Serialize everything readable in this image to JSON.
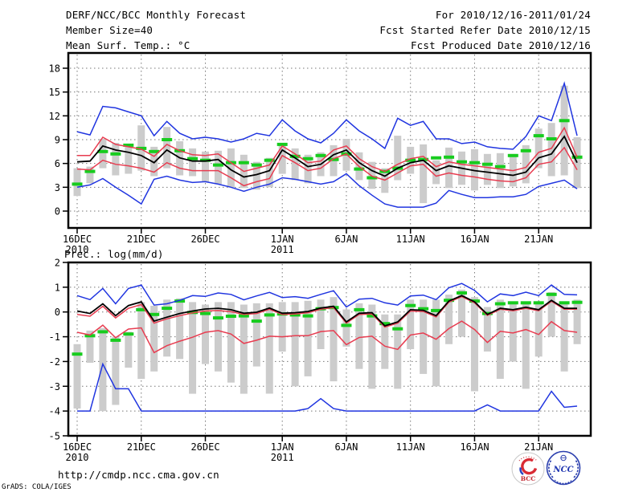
{
  "header": {
    "title": "DERF/NCC/BCC Monthly Forecast",
    "member_size": "Member Size=40",
    "for_range": "For 2010/12/16-2011/01/24",
    "refer_date": "Fcst Started Refer Date 2010/12/15",
    "produced_date": "Fcst Produced Date 2010/12/16"
  },
  "footer": {
    "url": "http://cmdp.ncc.cma.gov.cn",
    "credit": "GrADS: COLA/IGES"
  },
  "logos": {
    "bcc_label": "BCC",
    "ncc_label": "NCC"
  },
  "colors": {
    "black": "#000000",
    "blue": "#2035e0",
    "red": "#e83c50",
    "green": "#17cc1e",
    "bar": "#cccccc",
    "grid": "#777777",
    "frame": "#000000"
  },
  "chart_data": [
    {
      "type": "line",
      "title": "Mean Surf. Temp.: °C",
      "panel_label": "Mean Surf. Temp.: °C",
      "xlabel": "",
      "ylabel": "°C",
      "x_range_label": "daily, 2010/12/16 to 2011/01/24",
      "n_points": 40,
      "ylim": [
        -2.1,
        19.9
      ],
      "y_ticks": [
        0,
        3,
        6,
        9,
        12,
        15,
        18
      ],
      "grid_y": [
        0,
        3,
        6,
        9,
        12,
        15,
        18
      ],
      "grid": "dotted",
      "x_ticks": [
        {
          "label": "16DEC",
          "day": 1,
          "year": "2010"
        },
        {
          "label": "21DEC",
          "day": 6
        },
        {
          "label": "26DEC",
          "day": 11
        },
        {
          "label": "1JAN",
          "day": 17,
          "year": "2011"
        },
        {
          "label": "6JAN",
          "day": 22
        },
        {
          "label": "11JAN",
          "day": 27
        },
        {
          "label": "16JAN",
          "day": 32
        },
        {
          "label": "21JAN",
          "day": 37
        }
      ],
      "bars": {
        "name": "ensemble-spread-bar",
        "color": "bar",
        "low": [
          1.9,
          3.5,
          5.4,
          4.5,
          4.7,
          5.1,
          4.4,
          5.4,
          4.5,
          4.4,
          3.7,
          3.4,
          3.0,
          2.9,
          2.7,
          3.0,
          4.7,
          3.9,
          3.5,
          4.4,
          4.4,
          5.1,
          3.9,
          2.8,
          2.3,
          3.9,
          4.7,
          1.0,
          3.4,
          2.9,
          3.3,
          2.6,
          3.3,
          2.9,
          3.1,
          3.5,
          5.4,
          4.4,
          4.5,
          2.9
        ],
        "high": [
          5.4,
          5.6,
          9.1,
          8.6,
          8.4,
          10.8,
          8.1,
          10.6,
          8.8,
          7.9,
          7.5,
          7.6,
          7.9,
          7.1,
          6.2,
          6.7,
          8.6,
          7.9,
          7.1,
          7.4,
          8.3,
          9.1,
          7.4,
          6.2,
          5.4,
          9.5,
          8.1,
          8.4,
          6.4,
          8.0,
          7.5,
          7.8,
          7.2,
          7.3,
          7.2,
          8.3,
          10.4,
          11.1,
          15.8,
          9.3
        ]
      },
      "series": [
        {
          "name": "obs-dash",
          "color": "green",
          "style": "dash",
          "values": [
            3.4,
            5.0,
            7.5,
            7.2,
            8.3,
            7.9,
            7.5,
            9.0,
            7.6,
            6.6,
            6.4,
            5.8,
            6.1,
            6.1,
            5.8,
            6.4,
            8.4,
            6.9,
            6.6,
            7.0,
            6.5,
            7.2,
            5.3,
            4.2,
            5.0,
            5.4,
            6.4,
            6.5,
            6.7,
            6.8,
            6.2,
            6.1,
            5.9,
            5.6,
            7.0,
            7.6,
            9.5,
            9.1,
            11.4,
            6.8
          ]
        },
        {
          "name": "ensemble-min-line",
          "color": "blue",
          "width": 1.5,
          "values": [
            3.0,
            3.3,
            4.1,
            3.0,
            2.0,
            0.9,
            4.0,
            4.4,
            3.9,
            3.6,
            3.7,
            3.4,
            3.0,
            2.5,
            3.0,
            3.4,
            4.2,
            4.0,
            3.7,
            3.4,
            3.7,
            4.7,
            3.2,
            2.0,
            0.9,
            0.5,
            0.5,
            0.5,
            1.0,
            2.6,
            2.1,
            1.7,
            1.7,
            1.8,
            1.8,
            2.1,
            3.1,
            3.5,
            3.9,
            2.8
          ]
        },
        {
          "name": "ensemble-max-line",
          "color": "blue",
          "width": 1.5,
          "values": [
            10.0,
            9.6,
            13.2,
            13.0,
            12.5,
            12.0,
            9.5,
            11.3,
            9.8,
            9.1,
            9.3,
            9.1,
            8.7,
            9.1,
            9.8,
            9.5,
            11.5,
            10.1,
            9.1,
            8.6,
            9.8,
            11.5,
            10.1,
            9.1,
            7.9,
            11.7,
            10.8,
            11.3,
            9.1,
            9.1,
            8.5,
            8.7,
            8.1,
            7.9,
            7.8,
            9.4,
            12.0,
            11.4,
            16.1,
            9.5
          ]
        },
        {
          "name": "spread-lower-line",
          "color": "red",
          "width": 1.5,
          "values": [
            5.3,
            5.2,
            6.4,
            5.9,
            5.7,
            5.4,
            4.9,
            6.1,
            5.4,
            5.1,
            5.1,
            5.1,
            4.2,
            3.2,
            3.7,
            4.1,
            7.0,
            6.1,
            5.1,
            5.4,
            6.6,
            7.2,
            5.6,
            4.4,
            3.9,
            4.8,
            5.7,
            5.9,
            4.4,
            4.8,
            4.5,
            4.3,
            4.0,
            3.8,
            3.7,
            4.2,
            5.9,
            6.2,
            8.0,
            5.2
          ]
        },
        {
          "name": "spread-upper-line",
          "color": "red",
          "width": 1.5,
          "values": [
            7.0,
            7.0,
            9.3,
            8.4,
            8.1,
            7.8,
            6.9,
            8.4,
            7.6,
            7.1,
            7.0,
            7.2,
            6.1,
            5.0,
            5.4,
            5.8,
            8.2,
            7.2,
            6.1,
            6.3,
            7.7,
            8.2,
            6.6,
            5.6,
            5.0,
            5.9,
            6.6,
            6.9,
            5.6,
            6.2,
            5.9,
            5.7,
            5.5,
            5.3,
            5.1,
            5.5,
            7.4,
            7.9,
            10.5,
            6.8
          ]
        },
        {
          "name": "ensemble-mean-line",
          "color": "black",
          "width": 1.8,
          "values": [
            6.2,
            6.3,
            8.2,
            7.7,
            7.4,
            7.0,
            6.1,
            7.7,
            6.7,
            6.3,
            6.3,
            6.5,
            5.2,
            4.3,
            4.6,
            5.1,
            7.7,
            6.7,
            5.6,
            5.9,
            7.1,
            7.7,
            6.1,
            5.1,
            4.4,
            5.4,
            6.1,
            6.4,
            5.1,
            5.7,
            5.4,
            5.1,
            4.9,
            4.7,
            4.5,
            4.9,
            6.7,
            7.2,
            9.4,
            6.1
          ]
        }
      ]
    },
    {
      "type": "line",
      "title": "Prec.: log(mm/d)",
      "panel_label": "Prec.: log(mm/d)",
      "xlabel": "",
      "ylabel": "log(mm/d)",
      "x_range_label": "daily, 2010/12/16 to 2011/01/24",
      "n_points": 40,
      "ylim": [
        -5,
        2
      ],
      "y_ticks": [
        2,
        1,
        0,
        -1,
        -2,
        -3,
        -4,
        -5
      ],
      "grid_y": [
        1,
        0,
        -1,
        -2,
        -3,
        -4
      ],
      "grid": "dotted",
      "x_ticks": [
        {
          "label": "16DEC",
          "day": 1,
          "year": "2010"
        },
        {
          "label": "21DEC",
          "day": 6
        },
        {
          "label": "26DEC",
          "day": 11
        },
        {
          "label": "1JAN",
          "day": 17,
          "year": "2011"
        },
        {
          "label": "6JAN",
          "day": 22
        },
        {
          "label": "11JAN",
          "day": 27
        },
        {
          "label": "16JAN",
          "day": 32
        },
        {
          "label": "21JAN",
          "day": 37
        }
      ],
      "bars": {
        "name": "ensemble-spread-bar",
        "color": "bar",
        "low": [
          -3.9,
          -2.05,
          -4.0,
          -3.75,
          -2.25,
          -2.7,
          -2.4,
          -1.8,
          -1.9,
          -3.3,
          -2.1,
          -2.4,
          -2.85,
          -3.3,
          -2.2,
          -3.3,
          -1.6,
          -3.0,
          -2.6,
          -1.5,
          -2.8,
          -1.4,
          -2.3,
          -3.1,
          -2.3,
          -3.1,
          -1.5,
          -2.5,
          -3.0,
          -1.3,
          -1.0,
          -3.2,
          -1.6,
          -2.7,
          -2.0,
          -3.1,
          -1.8,
          -1.0,
          -2.4,
          -1.3
        ],
        "high": [
          -1.3,
          -0.75,
          -0.65,
          -1.0,
          -0.8,
          0.4,
          0.25,
          0.5,
          0.55,
          0.4,
          0.3,
          0.4,
          0.4,
          0.3,
          0.35,
          0.35,
          0.4,
          0.4,
          0.45,
          0.5,
          0.6,
          0.1,
          0.35,
          0.3,
          -0.1,
          -0.1,
          0.5,
          0.5,
          0.5,
          0.7,
          0.9,
          0.6,
          0.2,
          0.5,
          0.4,
          0.4,
          0.4,
          0.8,
          0.4,
          0.5
        ]
      },
      "series": [
        {
          "name": "obs-dash",
          "color": "green",
          "style": "dash",
          "values": [
            -1.7,
            -0.96,
            -0.8,
            -1.14,
            -0.89,
            0.09,
            -0.1,
            0.15,
            0.44,
            -0.02,
            -0.06,
            -0.24,
            -0.17,
            -0.16,
            -0.37,
            -0.12,
            -0.08,
            -0.12,
            -0.16,
            0.13,
            0.18,
            -0.54,
            0.09,
            -0.16,
            -0.47,
            -0.68,
            0.26,
            0.13,
            0.06,
            0.47,
            0.77,
            0.44,
            -0.06,
            0.33,
            0.37,
            0.37,
            0.37,
            0.71,
            0.37,
            0.39
          ]
        },
        {
          "name": "ensemble-min-line",
          "color": "blue",
          "width": 1.5,
          "values": [
            -4,
            -4,
            -2.1,
            -3.1,
            -3.1,
            -4,
            -4,
            -4,
            -4,
            -4,
            -4,
            -4,
            -4,
            -4,
            -4,
            -4,
            -4,
            -4,
            -3.9,
            -3.5,
            -3.9,
            -4,
            -4,
            -4,
            -4,
            -4,
            -4,
            -4,
            -4,
            -4,
            -4,
            -4,
            -3.75,
            -4,
            -4,
            -4,
            -4,
            -3.2,
            -3.85,
            -3.8
          ]
        },
        {
          "name": "ensemble-max-line",
          "color": "blue",
          "width": 1.5,
          "values": [
            0.66,
            0.5,
            0.95,
            0.33,
            0.95,
            1.09,
            0.28,
            0.33,
            0.47,
            0.66,
            0.63,
            0.77,
            0.71,
            0.49,
            0.65,
            0.79,
            0.58,
            0.62,
            0.55,
            0.71,
            0.86,
            0.2,
            0.52,
            0.55,
            0.37,
            0.28,
            0.65,
            0.68,
            0.5,
            0.98,
            1.15,
            0.87,
            0.41,
            0.73,
            0.66,
            0.8,
            0.66,
            1.09,
            0.71,
            0.69
          ]
        },
        {
          "name": "spread-lower-line",
          "color": "red",
          "width": 1.5,
          "values": [
            -0.82,
            -0.93,
            -0.53,
            -1.04,
            -0.69,
            -0.64,
            -1.64,
            -1.36,
            -1.18,
            -1.02,
            -0.82,
            -0.75,
            -0.89,
            -1.27,
            -1.14,
            -0.98,
            -1.0,
            -0.96,
            -0.96,
            -0.79,
            -0.75,
            -1.32,
            -1.03,
            -0.98,
            -1.38,
            -1.51,
            -0.93,
            -0.85,
            -1.1,
            -0.67,
            -0.37,
            -0.71,
            -1.23,
            -0.78,
            -0.85,
            -0.71,
            -0.91,
            -0.39,
            -0.75,
            -0.82
          ]
        },
        {
          "name": "spread-upper-line",
          "color": "red",
          "width": 1.5,
          "values": [
            -0.1,
            -0.17,
            0.23,
            -0.24,
            0.15,
            0.3,
            -0.45,
            -0.28,
            -0.15,
            -0.04,
            0.04,
            0.06,
            0.01,
            -0.1,
            -0.06,
            0.11,
            -0.1,
            -0.08,
            -0.03,
            0.11,
            0.18,
            -0.45,
            -0.1,
            -0.08,
            -0.61,
            -0.45,
            0.04,
            0.02,
            -0.2,
            0.4,
            0.62,
            0.37,
            -0.14,
            0.11,
            0.05,
            0.15,
            0.05,
            0.43,
            0.11,
            0.11
          ]
        },
        {
          "name": "ensemble-mean-line",
          "color": "black",
          "width": 1.8,
          "values": [
            0.04,
            -0.06,
            0.33,
            -0.15,
            0.26,
            0.41,
            -0.37,
            -0.21,
            -0.06,
            0.04,
            0.12,
            0.15,
            0.09,
            -0.05,
            -0.01,
            0.16,
            -0.05,
            -0.03,
            0.02,
            0.16,
            0.23,
            -0.4,
            -0.05,
            -0.03,
            -0.56,
            -0.4,
            0.09,
            0.07,
            -0.15,
            0.44,
            0.66,
            0.41,
            -0.1,
            0.15,
            0.09,
            0.19,
            0.09,
            0.47,
            0.15,
            0.15
          ]
        }
      ]
    }
  ]
}
